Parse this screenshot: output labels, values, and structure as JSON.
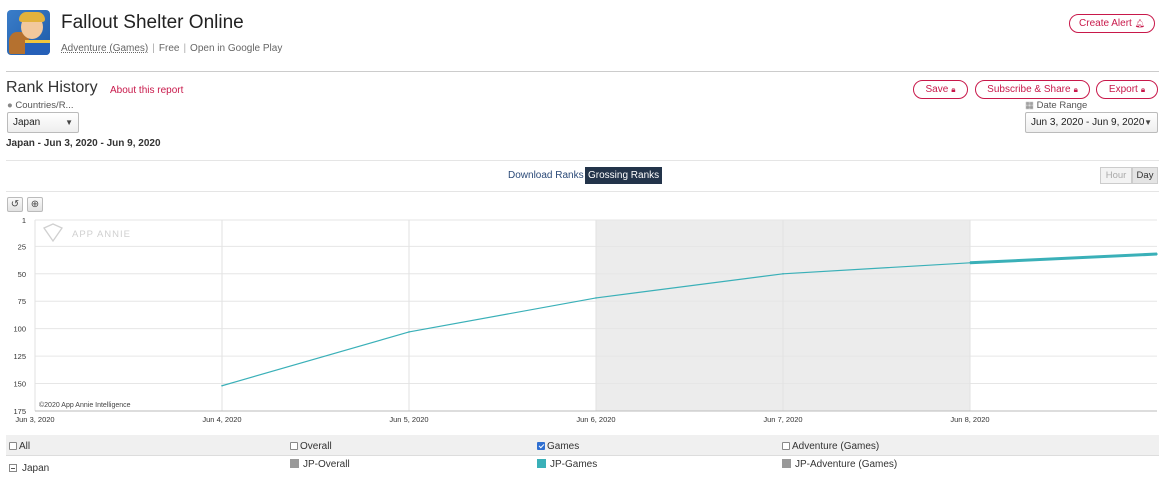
{
  "app": {
    "name": "Fallout Shelter Online",
    "category": "Adventure (Games)",
    "price": "Free",
    "store_link": "Open in Google Play",
    "create_alert_label": "Create Alert"
  },
  "report": {
    "title": "Rank History",
    "about_link": "About this report",
    "actions": {
      "save": "Save",
      "subscribe": "Subscribe & Share",
      "export": "Export"
    }
  },
  "filters": {
    "countries_label": "Countries/R...",
    "country_value": "Japan",
    "date_range_label": "Date Range",
    "date_range_value": "Jun 3, 2020 - Jun 9, 2020"
  },
  "subtitle": "Japan - Jun 3, 2020 - Jun 9, 2020",
  "rank_tabs": {
    "download": "Download Ranks",
    "grossing": "Grossing Ranks",
    "active": "grossing"
  },
  "granularity": {
    "hour": "Hour",
    "day": "Day",
    "active": "day"
  },
  "icons": {
    "reset": "reset-zoom-icon",
    "zoom": "zoom-icon",
    "lock": "lock-icon",
    "globe": "globe-icon",
    "calendar": "calendar-icon"
  },
  "colors": {
    "accent": "#c8184a",
    "series_games": "#3ab0b8",
    "series_overall": "#999999",
    "series_adventure": "#999999",
    "tab_active": "#23344a"
  },
  "chart_data": {
    "type": "line",
    "watermark": "APP ANNIE",
    "copyright": "©2020 App Annie Intelligence",
    "y_reversed": true,
    "ylim": [
      1,
      175
    ],
    "y_ticks": [
      "1",
      "25",
      "50",
      "75",
      "100",
      "125",
      "150",
      "175"
    ],
    "y_tick_values": [
      1,
      25,
      50,
      75,
      100,
      125,
      150,
      175
    ],
    "x_ticks": [
      "Jun 3, 2020",
      "Jun 4, 2020",
      "Jun 5, 2020",
      "Jun 6, 2020",
      "Jun 7, 2020",
      "Jun 8, 2020"
    ],
    "xlim": [
      "Jun 3, 2020",
      "Jun 9, 2020"
    ],
    "shaded_range": [
      "Jun 6, 2020",
      "Jun 8, 2020"
    ],
    "series": [
      {
        "name": "JP-Games",
        "x": [
          "Jun 4, 2020",
          "Jun 5, 2020",
          "Jun 6, 2020",
          "Jun 7, 2020",
          "Jun 8, 2020",
          "Jun 9, 2020"
        ],
        "values": [
          152,
          103,
          72,
          50,
          40,
          32
        ]
      }
    ]
  },
  "legend": {
    "all": {
      "label": "All",
      "checked": false
    },
    "columns": [
      {
        "label": "Overall",
        "checked": false
      },
      {
        "label": "Games",
        "checked": true
      },
      {
        "label": "Adventure (Games)",
        "checked": false
      }
    ],
    "row": {
      "country": "Japan",
      "items": [
        "JP-Overall",
        "JP-Games",
        "JP-Adventure (Games)"
      ]
    }
  }
}
